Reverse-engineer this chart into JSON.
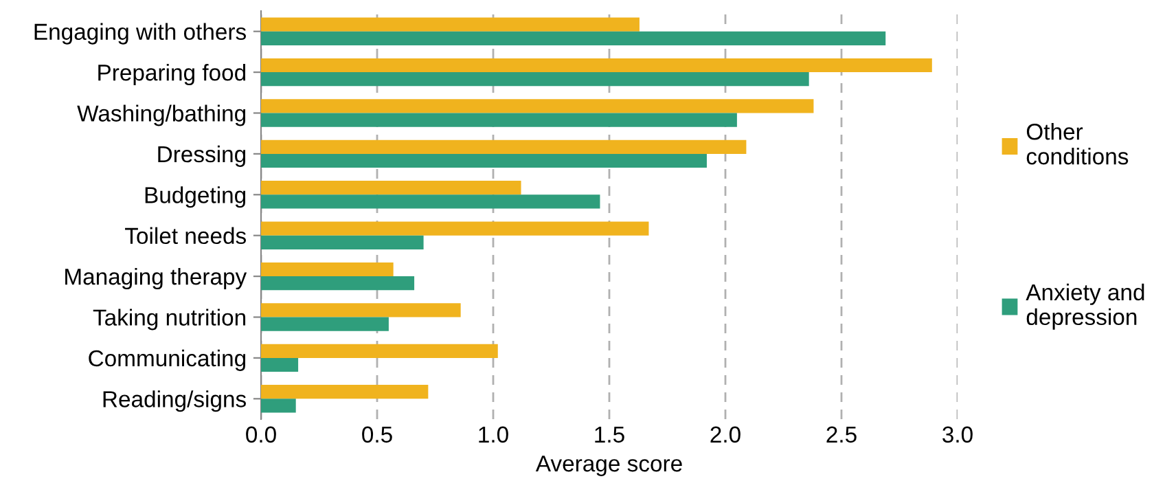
{
  "chart_data": {
    "type": "bar",
    "orientation": "horizontal",
    "xlabel": "Average score",
    "categories": [
      "Engaging with others",
      "Preparing food",
      "Washing/bathing",
      "Dressing",
      "Budgeting",
      "Toilet needs",
      "Managing therapy",
      "Taking nutrition",
      "Communicating",
      "Reading/signs"
    ],
    "series": [
      {
        "name": "Other\nconditions",
        "color": "#f0b31e",
        "values": [
          1.63,
          2.89,
          2.38,
          2.09,
          1.12,
          1.67,
          0.57,
          0.86,
          1.02,
          0.72
        ]
      },
      {
        "name": "Anxiety and\ndepression",
        "color": "#2f9e7c",
        "values": [
          2.69,
          2.36,
          2.05,
          1.92,
          1.46,
          0.7,
          0.66,
          0.55,
          0.16,
          0.15
        ]
      }
    ],
    "xlim": [
      0,
      3
    ],
    "xticks": [
      {
        "value": 0,
        "label": "0.0"
      },
      {
        "value": 0.5,
        "label": "0.5"
      },
      {
        "value": 1,
        "label": "1.0"
      },
      {
        "value": 1.5,
        "label": "1.5"
      },
      {
        "value": 2,
        "label": "2.0"
      },
      {
        "value": 2.5,
        "label": "2.5"
      },
      {
        "value": 3,
        "label": "3.0"
      }
    ],
    "grid": "x",
    "legend": "right"
  }
}
